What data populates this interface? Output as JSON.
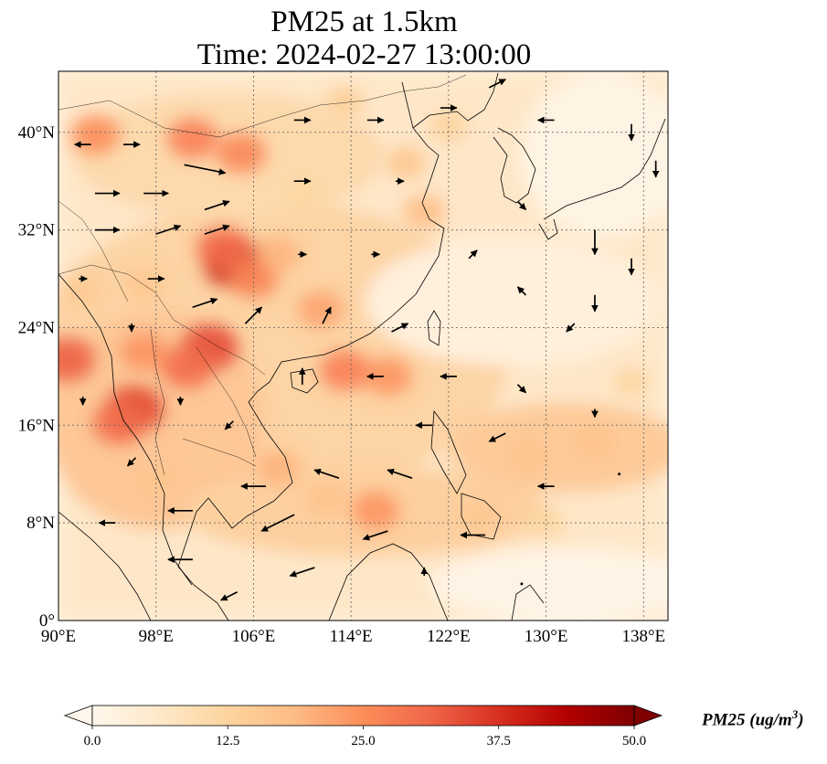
{
  "title": {
    "line1": "PM25 at 1.5km",
    "line2": "Time: 2024-02-27 13:00:00"
  },
  "map": {
    "projection": "PlateCarree",
    "lon_range": [
      90,
      140
    ],
    "lat_range": [
      0,
      45
    ],
    "gridlines": "dotted",
    "lon_ticks": [
      {
        "value": 90,
        "label": "90°E"
      },
      {
        "value": 98,
        "label": "98°E"
      },
      {
        "value": 106,
        "label": "106°E"
      },
      {
        "value": 114,
        "label": "114°E"
      },
      {
        "value": 122,
        "label": "122°E"
      },
      {
        "value": 130,
        "label": "130°E"
      },
      {
        "value": 138,
        "label": "138°E"
      }
    ],
    "lat_ticks": [
      {
        "value": 0,
        "label": "0°"
      },
      {
        "value": 8,
        "label": "8°N"
      },
      {
        "value": 16,
        "label": "16°N"
      },
      {
        "value": 24,
        "label": "24°N"
      },
      {
        "value": 32,
        "label": "32°N"
      },
      {
        "value": 40,
        "label": "40°N"
      }
    ],
    "hotspots": [
      {
        "lon": 104.4,
        "lat": 29.3,
        "value": 40
      },
      {
        "lon": 103.5,
        "lat": 30.5,
        "value": 30
      },
      {
        "lon": 102.4,
        "lat": 22.4,
        "value": 34
      },
      {
        "lon": 100.6,
        "lat": 20.8,
        "value": 30
      },
      {
        "lon": 96.2,
        "lat": 17.3,
        "value": 35
      },
      {
        "lon": 95.0,
        "lat": 16.2,
        "value": 30
      },
      {
        "lon": 90.7,
        "lat": 21.4,
        "value": 32
      },
      {
        "lon": 97.0,
        "lat": 22.0,
        "value": 24
      },
      {
        "lon": 93.0,
        "lat": 39.8,
        "value": 25
      },
      {
        "lon": 101.0,
        "lat": 39.5,
        "value": 27
      },
      {
        "lon": 105.0,
        "lat": 38.3,
        "value": 26
      },
      {
        "lon": 113.5,
        "lat": 20.5,
        "value": 27
      },
      {
        "lon": 117.0,
        "lat": 20.0,
        "value": 24
      },
      {
        "lon": 111.5,
        "lat": 25.5,
        "value": 22
      },
      {
        "lon": 116.0,
        "lat": 9.0,
        "value": 24
      },
      {
        "lon": 108.0,
        "lat": 12.5,
        "value": 20
      },
      {
        "lon": 106.0,
        "lat": 28.0,
        "value": 26
      },
      {
        "lon": 108.0,
        "lat": 30.0,
        "value": 20
      },
      {
        "lon": 120.0,
        "lat": 33.5,
        "value": 18
      },
      {
        "lon": 128.5,
        "lat": 13.5,
        "value": 17
      },
      {
        "lon": 134.0,
        "lat": 14.5,
        "value": 17
      },
      {
        "lon": 137.0,
        "lat": 19.5,
        "value": 12
      },
      {
        "lon": 112.0,
        "lat": 10.0,
        "value": 17
      },
      {
        "lon": 98.0,
        "lat": 11.5,
        "value": 16
      },
      {
        "lon": 102.0,
        "lat": 14.0,
        "value": 15
      },
      {
        "lon": 110.0,
        "lat": 35.0,
        "value": 12
      },
      {
        "lon": 92.0,
        "lat": 27.0,
        "value": 15
      },
      {
        "lon": 97.0,
        "lat": 27.5,
        "value": 16
      },
      {
        "lon": 124.5,
        "lat": 8.5,
        "value": 16
      },
      {
        "lon": 130.0,
        "lat": 8.0,
        "value": 12
      },
      {
        "lon": 118.5,
        "lat": 37.5,
        "value": 16
      },
      {
        "lon": 113.5,
        "lat": 42.5,
        "value": 14
      },
      {
        "lon": 122.0,
        "lat": 40.5,
        "value": 13
      }
    ],
    "wind_vectors": [
      {
        "lon": 92,
        "lat": 39,
        "u": -2,
        "v": 0
      },
      {
        "lon": 96,
        "lat": 39,
        "u": 2,
        "v": 0
      },
      {
        "lon": 102,
        "lat": 37,
        "u": 5,
        "v": -1
      },
      {
        "lon": 94,
        "lat": 35,
        "u": 3,
        "v": 0
      },
      {
        "lon": 98,
        "lat": 35,
        "u": 3,
        "v": 0
      },
      {
        "lon": 103,
        "lat": 34,
        "u": 3,
        "v": 1
      },
      {
        "lon": 94,
        "lat": 32,
        "u": 3,
        "v": 0
      },
      {
        "lon": 99,
        "lat": 32,
        "u": 3,
        "v": 1
      },
      {
        "lon": 103,
        "lat": 32,
        "u": 3,
        "v": 1
      },
      {
        "lon": 110,
        "lat": 41,
        "u": 2,
        "v": 0
      },
      {
        "lon": 116,
        "lat": 41,
        "u": 2,
        "v": 0
      },
      {
        "lon": 122,
        "lat": 42,
        "u": 2,
        "v": 0
      },
      {
        "lon": 126,
        "lat": 44,
        "u": 2,
        "v": 1
      },
      {
        "lon": 130,
        "lat": 41,
        "u": -2,
        "v": 0
      },
      {
        "lon": 137,
        "lat": 40,
        "u": 0,
        "v": -2
      },
      {
        "lon": 139,
        "lat": 37,
        "u": 0,
        "v": -2
      },
      {
        "lon": 134,
        "lat": 31,
        "u": 0,
        "v": -3
      },
      {
        "lon": 137,
        "lat": 29,
        "u": 0,
        "v": -2
      },
      {
        "lon": 134,
        "lat": 26,
        "u": 0,
        "v": -2
      },
      {
        "lon": 102,
        "lat": 26,
        "u": 3,
        "v": 1
      },
      {
        "lon": 106,
        "lat": 25,
        "u": 2,
        "v": 2
      },
      {
        "lon": 112,
        "lat": 25,
        "u": 1,
        "v": 2
      },
      {
        "lon": 118,
        "lat": 24,
        "u": 2,
        "v": 1
      },
      {
        "lon": 96,
        "lat": 24,
        "u": 0,
        "v": -1
      },
      {
        "lon": 110,
        "lat": 20,
        "u": 0,
        "v": 2
      },
      {
        "lon": 116,
        "lat": 20,
        "u": -2,
        "v": 0
      },
      {
        "lon": 122,
        "lat": 20,
        "u": -2,
        "v": 0
      },
      {
        "lon": 128,
        "lat": 19,
        "u": 1,
        "v": -1
      },
      {
        "lon": 134,
        "lat": 17,
        "u": 0,
        "v": -1
      },
      {
        "lon": 120,
        "lat": 16,
        "u": -2,
        "v": 0
      },
      {
        "lon": 126,
        "lat": 15,
        "u": -2,
        "v": -1
      },
      {
        "lon": 118,
        "lat": 12,
        "u": -3,
        "v": 1
      },
      {
        "lon": 112,
        "lat": 12,
        "u": -3,
        "v": 1
      },
      {
        "lon": 106,
        "lat": 11,
        "u": -3,
        "v": 0
      },
      {
        "lon": 100,
        "lat": 9,
        "u": -3,
        "v": 0
      },
      {
        "lon": 94,
        "lat": 8,
        "u": -2,
        "v": 0
      },
      {
        "lon": 108,
        "lat": 8,
        "u": -4,
        "v": -2
      },
      {
        "lon": 116,
        "lat": 7,
        "u": -3,
        "v": -1
      },
      {
        "lon": 124,
        "lat": 7,
        "u": -3,
        "v": 0
      },
      {
        "lon": 100,
        "lat": 5,
        "u": -3,
        "v": 0
      },
      {
        "lon": 110,
        "lat": 4,
        "u": -3,
        "v": -1
      },
      {
        "lon": 120,
        "lat": 4,
        "u": 0,
        "v": 1
      },
      {
        "lon": 104,
        "lat": 2,
        "u": -2,
        "v": -1
      },
      {
        "lon": 128,
        "lat": 3,
        "u": 0,
        "v": 0
      },
      {
        "lon": 132,
        "lat": 24,
        "u": -1,
        "v": -1
      },
      {
        "lon": 128,
        "lat": 27,
        "u": -1,
        "v": 1
      },
      {
        "lon": 124,
        "lat": 30,
        "u": 1,
        "v": 1
      },
      {
        "lon": 128,
        "lat": 34,
        "u": 1,
        "v": -1
      },
      {
        "lon": 116,
        "lat": 30,
        "u": 1,
        "v": 0
      },
      {
        "lon": 110,
        "lat": 30,
        "u": 1,
        "v": 0
      },
      {
        "lon": 92,
        "lat": 28,
        "u": 1,
        "v": 0
      },
      {
        "lon": 98,
        "lat": 28,
        "u": 2,
        "v": 0
      },
      {
        "lon": 92,
        "lat": 18,
        "u": 0,
        "v": -1
      },
      {
        "lon": 100,
        "lat": 18,
        "u": 0,
        "v": -1
      },
      {
        "lon": 104,
        "lat": 16,
        "u": -1,
        "v": -1
      },
      {
        "lon": 96,
        "lat": 13,
        "u": -1,
        "v": -1
      },
      {
        "lon": 130,
        "lat": 11,
        "u": -2,
        "v": 0
      },
      {
        "lon": 136,
        "lat": 12,
        "u": 0,
        "v": 0
      },
      {
        "lon": 118,
        "lat": 36,
        "u": 1,
        "v": 0
      },
      {
        "lon": 110,
        "lat": 36,
        "u": 2,
        "v": 0
      }
    ]
  },
  "colorbar": {
    "cmap": "OrRd",
    "min": 0,
    "max": 50,
    "extend": "both",
    "ticks": [
      "0.0",
      "12.5",
      "25.0",
      "37.5",
      "50.0"
    ],
    "label": "PM25 (ug/m",
    "label_superscript": "3",
    "label_close": ")",
    "colors": [
      "#fff7ec",
      "#fee8c8",
      "#fdd49e",
      "#fdbb84",
      "#fc8d59",
      "#ef6548",
      "#d7301f",
      "#b30000",
      "#7f0000"
    ]
  }
}
